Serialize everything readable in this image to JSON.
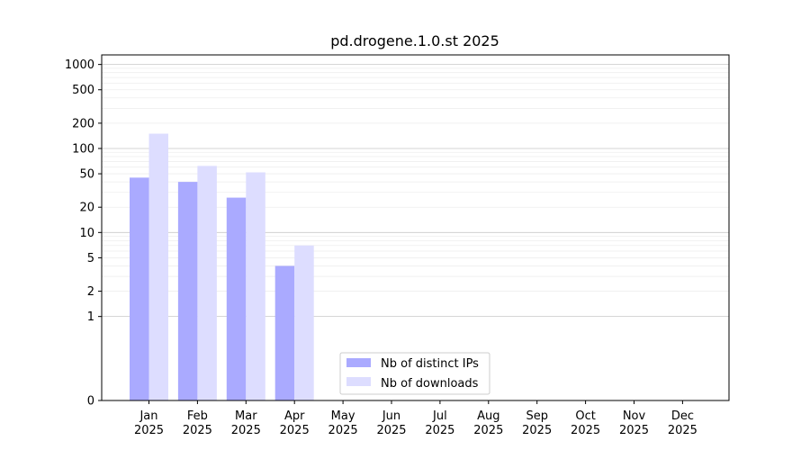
{
  "chart_data": {
    "type": "bar",
    "title": "pd.drogene.1.0.st 2025",
    "xlabel": "",
    "ylabel": "",
    "y_scale": "symlog",
    "ylim": [
      0,
      1300
    ],
    "yticks": [
      0,
      1,
      2,
      5,
      10,
      20,
      50,
      100,
      200,
      500,
      1000
    ],
    "ytick_labels": [
      "0",
      "1",
      "2",
      "5",
      "10",
      "20",
      "50",
      "100",
      "200",
      "500",
      "1000"
    ],
    "grid": true,
    "legend_position": "bottom-center",
    "categories": [
      {
        "month": "Jan",
        "year": "2025"
      },
      {
        "month": "Feb",
        "year": "2025"
      },
      {
        "month": "Mar",
        "year": "2025"
      },
      {
        "month": "Apr",
        "year": "2025"
      },
      {
        "month": "May",
        "year": "2025"
      },
      {
        "month": "Jun",
        "year": "2025"
      },
      {
        "month": "Jul",
        "year": "2025"
      },
      {
        "month": "Aug",
        "year": "2025"
      },
      {
        "month": "Sep",
        "year": "2025"
      },
      {
        "month": "Oct",
        "year": "2025"
      },
      {
        "month": "Nov",
        "year": "2025"
      },
      {
        "month": "Dec",
        "year": "2025"
      }
    ],
    "series": [
      {
        "name": "Nb of distinct IPs",
        "color": "#aaaaff",
        "values": [
          45,
          40,
          26,
          4,
          0,
          0,
          0,
          0,
          0,
          0,
          0,
          0
        ]
      },
      {
        "name": "Nb of downloads",
        "color": "#ddddff",
        "values": [
          150,
          62,
          52,
          7,
          0,
          0,
          0,
          0,
          0,
          0,
          0,
          0
        ]
      }
    ]
  }
}
